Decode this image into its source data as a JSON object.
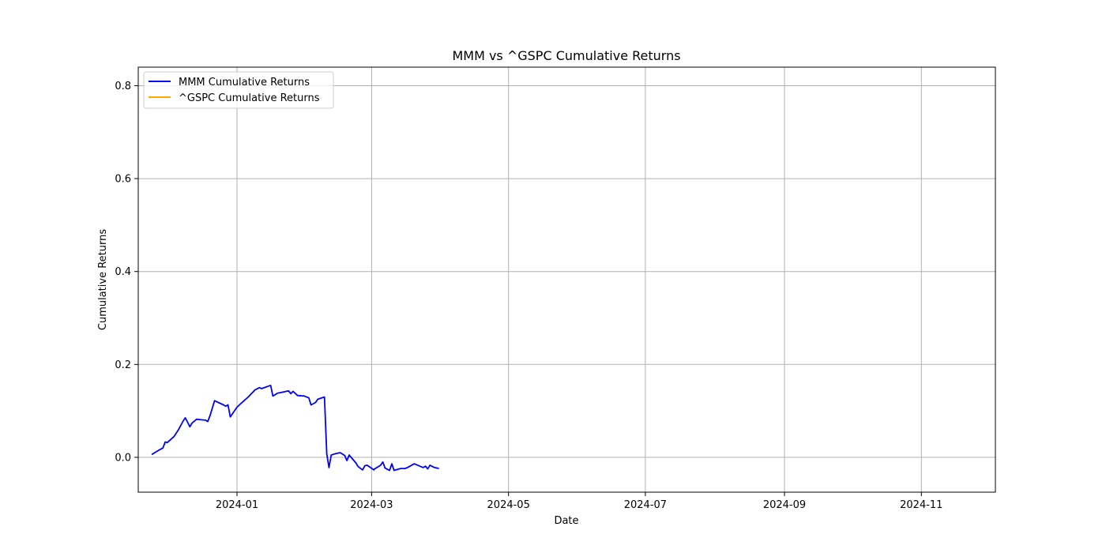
{
  "chart_data": {
    "type": "line",
    "title": "MMM vs ^GSPC Cumulative Returns",
    "xlabel": "Date",
    "ylabel": "Cumulative Returns",
    "xlim": [
      "2023-11-18",
      "2024-12-04"
    ],
    "ylim": [
      -0.075,
      0.84
    ],
    "xticks": [
      {
        "label": "2024-01",
        "date": "2024-01-01"
      },
      {
        "label": "2024-03",
        "date": "2024-03-01"
      },
      {
        "label": "2024-05",
        "date": "2024-05-01"
      },
      {
        "label": "2024-07",
        "date": "2024-07-01"
      },
      {
        "label": "2024-09",
        "date": "2024-09-01"
      },
      {
        "label": "2024-11",
        "date": "2024-11-01"
      }
    ],
    "yticks": [
      {
        "label": "0.0",
        "value": 0.0
      },
      {
        "label": "0.2",
        "value": 0.2
      },
      {
        "label": "0.4",
        "value": 0.4
      },
      {
        "label": "0.6",
        "value": 0.6
      },
      {
        "label": "0.8",
        "value": 0.8
      }
    ],
    "grid": true,
    "legend_position": "top-left",
    "series": [
      {
        "name": "MMM Cumulative Returns",
        "color": "#0000ff",
        "points": [
          [
            "2023-11-24",
            0.006
          ],
          [
            "2023-11-27",
            0.015
          ],
          [
            "2023-11-29",
            0.02
          ],
          [
            "2023-11-30",
            0.033
          ],
          [
            "2023-12-01",
            0.032
          ],
          [
            "2023-12-04",
            0.045
          ],
          [
            "2023-12-06",
            0.06
          ],
          [
            "2023-12-08",
            0.078
          ],
          [
            "2023-12-09",
            0.085
          ],
          [
            "2023-12-11",
            0.066
          ],
          [
            "2023-12-12",
            0.074
          ],
          [
            "2023-12-14",
            0.082
          ],
          [
            "2023-12-18",
            0.08
          ],
          [
            "2023-12-19",
            0.077
          ],
          [
            "2023-12-20",
            0.09
          ],
          [
            "2023-12-22",
            0.122
          ],
          [
            "2023-12-26",
            0.113
          ],
          [
            "2023-12-27",
            0.11
          ],
          [
            "2023-12-28",
            0.113
          ],
          [
            "2023-12-29",
            0.087
          ],
          [
            "2024-01-01",
            0.108
          ],
          [
            "2024-01-03",
            0.117
          ],
          [
            "2024-01-06",
            0.13
          ],
          [
            "2024-01-09",
            0.145
          ],
          [
            "2024-01-11",
            0.15
          ],
          [
            "2024-01-12",
            0.148
          ],
          [
            "2024-01-16",
            0.155
          ],
          [
            "2024-01-17",
            0.132
          ],
          [
            "2024-01-19",
            0.138
          ],
          [
            "2024-01-21",
            0.14
          ],
          [
            "2024-01-24",
            0.143
          ],
          [
            "2024-01-25",
            0.137
          ],
          [
            "2024-01-26",
            0.142
          ],
          [
            "2024-01-28",
            0.133
          ],
          [
            "2024-01-31",
            0.132
          ],
          [
            "2024-02-02",
            0.128
          ],
          [
            "2024-02-03",
            0.113
          ],
          [
            "2024-02-05",
            0.118
          ],
          [
            "2024-02-06",
            0.125
          ],
          [
            "2024-02-09",
            0.13
          ],
          [
            "2024-02-10",
            0.008
          ],
          [
            "2024-02-11",
            -0.022
          ],
          [
            "2024-02-12",
            0.005
          ],
          [
            "2024-02-14",
            0.008
          ],
          [
            "2024-02-16",
            0.01
          ],
          [
            "2024-02-18",
            0.004
          ],
          [
            "2024-02-19",
            -0.007
          ],
          [
            "2024-02-20",
            0.005
          ],
          [
            "2024-02-23",
            -0.012
          ],
          [
            "2024-02-24",
            -0.02
          ],
          [
            "2024-02-26",
            -0.027
          ],
          [
            "2024-02-27",
            -0.018
          ],
          [
            "2024-02-28",
            -0.017
          ],
          [
            "2024-03-02",
            -0.027
          ],
          [
            "2024-03-05",
            -0.017
          ],
          [
            "2024-03-06",
            -0.01
          ],
          [
            "2024-03-07",
            -0.023
          ],
          [
            "2024-03-09",
            -0.028
          ],
          [
            "2024-03-10",
            -0.014
          ],
          [
            "2024-03-11",
            -0.028
          ],
          [
            "2024-03-14",
            -0.024
          ],
          [
            "2024-03-16",
            -0.024
          ],
          [
            "2024-03-17",
            -0.022
          ],
          [
            "2024-03-20",
            -0.014
          ],
          [
            "2024-03-23",
            -0.02
          ],
          [
            "2024-03-24",
            -0.022
          ],
          [
            "2024-03-25",
            -0.019
          ],
          [
            "2024-03-26",
            -0.025
          ],
          [
            "2024-03-27",
            -0.017
          ],
          [
            "2024-03-29",
            -0.022
          ],
          [
            "2024-03-31",
            -0.024
          ],
          [
            "2024-03-02",
            -0.026
          ]
        ]
      },
      {
        "name": "^GSPC Cumulative Returns",
        "color": "#ffa500",
        "points": []
      }
    ]
  }
}
